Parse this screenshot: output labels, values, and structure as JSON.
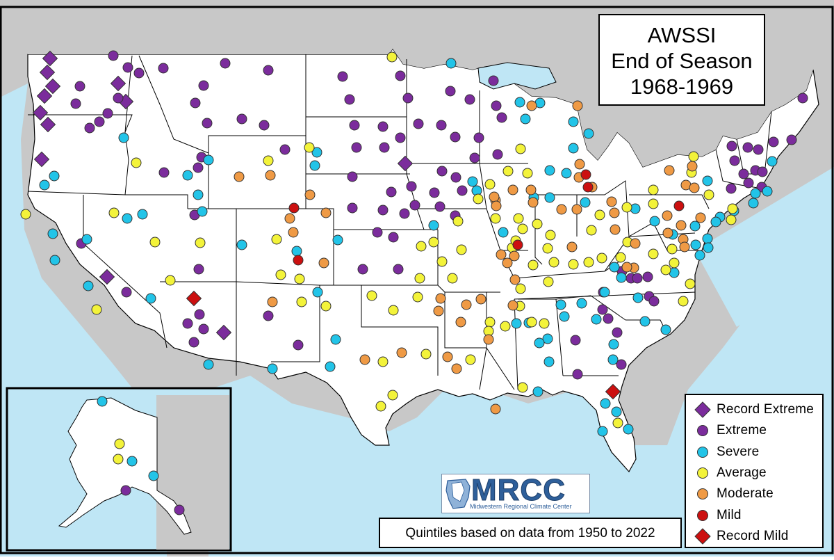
{
  "title": {
    "line1": "AWSSI",
    "line2": "End of Season",
    "line3": "1968-1969"
  },
  "footnote": "Quintiles based on data from 1950 to 2022",
  "logo": {
    "text": "MRCC",
    "subtitle": "Midwestern Regional Climate Center"
  },
  "legend": [
    {
      "category": "record_extreme",
      "label": "Record Extreme",
      "shape": "diamond",
      "color": "#7b2c9c"
    },
    {
      "category": "extreme",
      "label": "Extreme",
      "shape": "circle",
      "color": "#7b2c9c"
    },
    {
      "category": "severe",
      "label": "Severe",
      "shape": "circle",
      "color": "#22c4e8"
    },
    {
      "category": "average",
      "label": "Average",
      "shape": "circle",
      "color": "#f3f33a"
    },
    {
      "category": "moderate",
      "label": "Moderate",
      "shape": "circle",
      "color": "#ef9a45"
    },
    {
      "category": "mild",
      "label": "Mild",
      "shape": "circle",
      "color": "#cc1010"
    },
    {
      "category": "record_mild",
      "label": "Record Mild",
      "shape": "diamond",
      "color": "#cc1010"
    }
  ],
  "map_colors": {
    "land": "#ffffff",
    "water": "#bfe6f5",
    "foreign": "#c8c8c8",
    "border": "#000000"
  }
}
